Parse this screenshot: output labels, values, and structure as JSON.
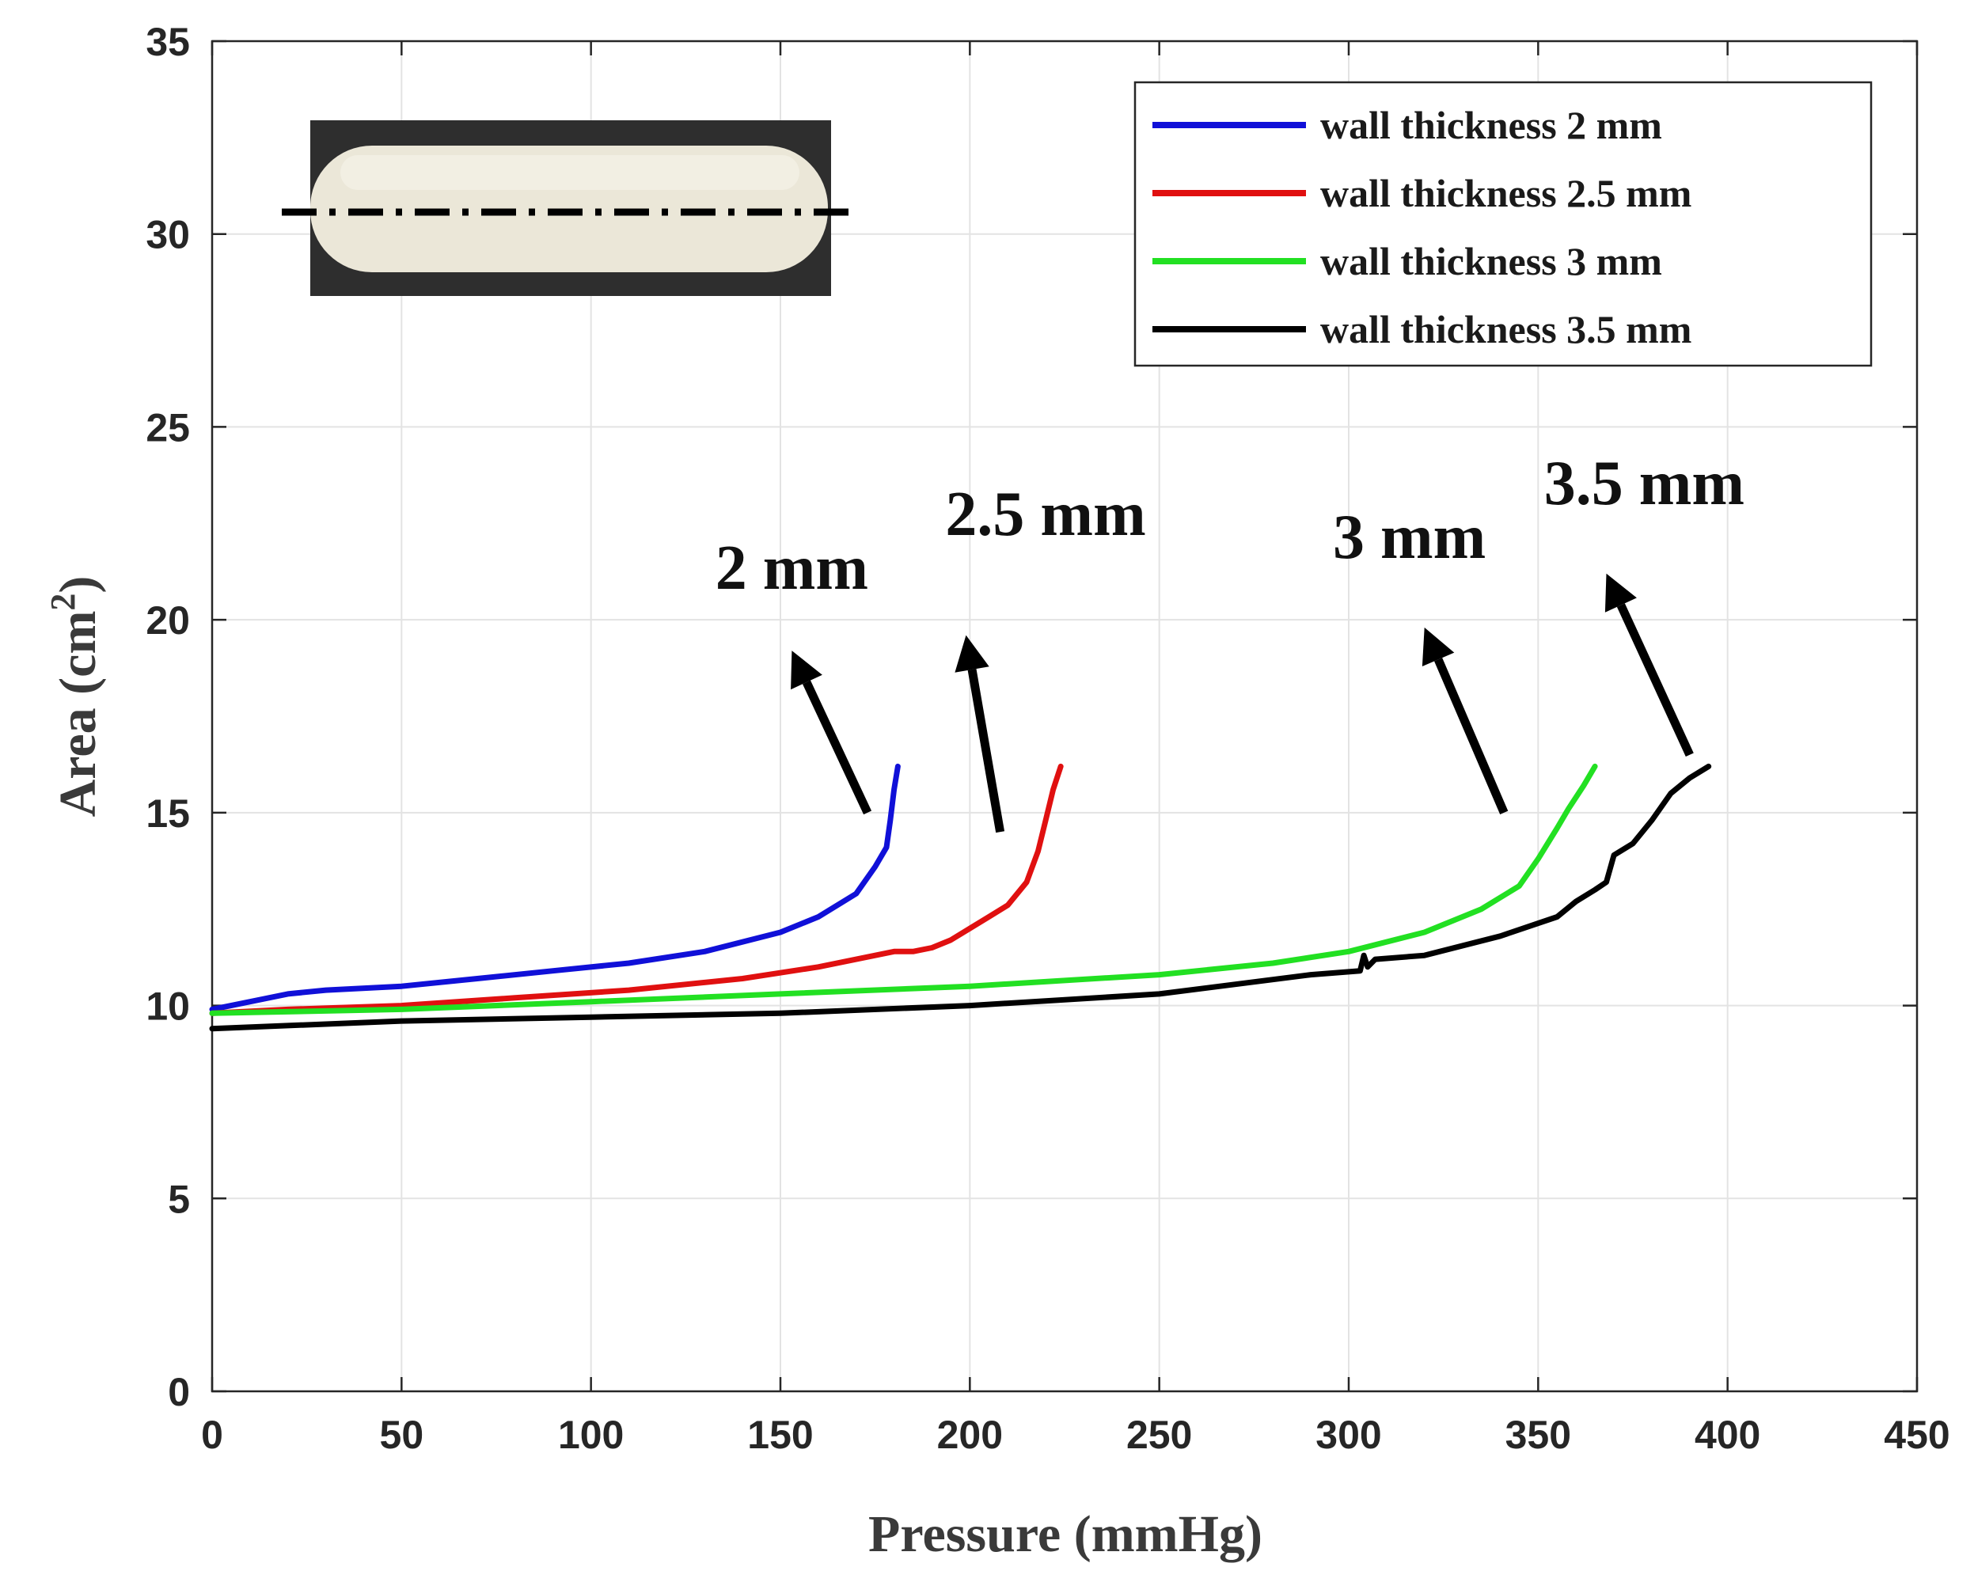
{
  "chart_data": {
    "type": "line",
    "title": "",
    "xlabel": "Pressure (mmHg)",
    "ylabel_main": "Area (cm",
    "ylabel_sup": "2",
    "ylabel_close": ")",
    "xlim": [
      0,
      450
    ],
    "ylim": [
      0,
      35
    ],
    "xticks": [
      0,
      50,
      100,
      150,
      200,
      250,
      300,
      350,
      400,
      450
    ],
    "yticks": [
      0,
      5,
      10,
      15,
      20,
      25,
      30,
      35
    ],
    "grid": true,
    "legend_position": "top-right",
    "inset": "photo of elongated white specimen with dash-dot center line",
    "series": [
      {
        "name": "wall thickness 2 mm",
        "color": "#1010d8",
        "x": [
          0,
          10,
          20,
          30,
          50,
          70,
          90,
          110,
          130,
          150,
          160,
          170,
          175,
          178,
          179,
          180,
          181
        ],
        "y": [
          9.9,
          10.1,
          10.3,
          10.4,
          10.5,
          10.7,
          10.9,
          11.1,
          11.4,
          11.9,
          12.3,
          12.9,
          13.6,
          14.1,
          14.8,
          15.6,
          16.2
        ]
      },
      {
        "name": "wall thickness 2.5 mm",
        "color": "#e01010",
        "x": [
          0,
          20,
          50,
          80,
          110,
          140,
          160,
          175,
          180,
          185,
          190,
          195,
          200,
          205,
          210,
          215,
          218,
          220,
          222,
          224
        ],
        "y": [
          9.8,
          9.9,
          10.0,
          10.2,
          10.4,
          10.7,
          11.0,
          11.3,
          11.4,
          11.4,
          11.5,
          11.7,
          12.0,
          12.3,
          12.6,
          13.2,
          14.0,
          14.8,
          15.6,
          16.2
        ]
      },
      {
        "name": "wall thickness 3 mm",
        "color": "#22e022",
        "x": [
          0,
          50,
          100,
          150,
          200,
          250,
          280,
          300,
          320,
          335,
          345,
          350,
          355,
          358,
          362,
          365
        ],
        "y": [
          9.8,
          9.9,
          10.1,
          10.3,
          10.5,
          10.8,
          11.1,
          11.4,
          11.9,
          12.5,
          13.1,
          13.8,
          14.6,
          15.1,
          15.7,
          16.2
        ]
      },
      {
        "name": "wall thickness 3.5 mm",
        "color": "#000000",
        "x": [
          0,
          50,
          100,
          150,
          200,
          250,
          290,
          303,
          304,
          305,
          307,
          320,
          340,
          355,
          360,
          365,
          368,
          370,
          375,
          380,
          385,
          390,
          395
        ],
        "y": [
          9.4,
          9.6,
          9.7,
          9.8,
          10.0,
          10.3,
          10.8,
          10.9,
          11.3,
          11.0,
          11.2,
          11.3,
          11.8,
          12.3,
          12.7,
          13.0,
          13.2,
          13.9,
          14.2,
          14.8,
          15.5,
          15.9,
          16.2
        ]
      }
    ],
    "annotations": [
      {
        "text": "2 mm",
        "x": 153,
        "y": 20.8,
        "arrow_from": [
          173,
          15.0
        ],
        "arrow_to": [
          153,
          19.2
        ]
      },
      {
        "text": "2.5 mm",
        "x": 220,
        "y": 22.2,
        "arrow_from": [
          208,
          14.5
        ],
        "arrow_to": [
          199,
          19.6
        ]
      },
      {
        "text": "3 mm",
        "x": 316,
        "y": 21.6,
        "arrow_from": [
          341,
          15.0
        ],
        "arrow_to": [
          320,
          19.8
        ]
      },
      {
        "text": "3.5 mm",
        "x": 378,
        "y": 23.0,
        "arrow_from": [
          390,
          16.5
        ],
        "arrow_to": [
          368,
          21.2
        ]
      }
    ]
  }
}
